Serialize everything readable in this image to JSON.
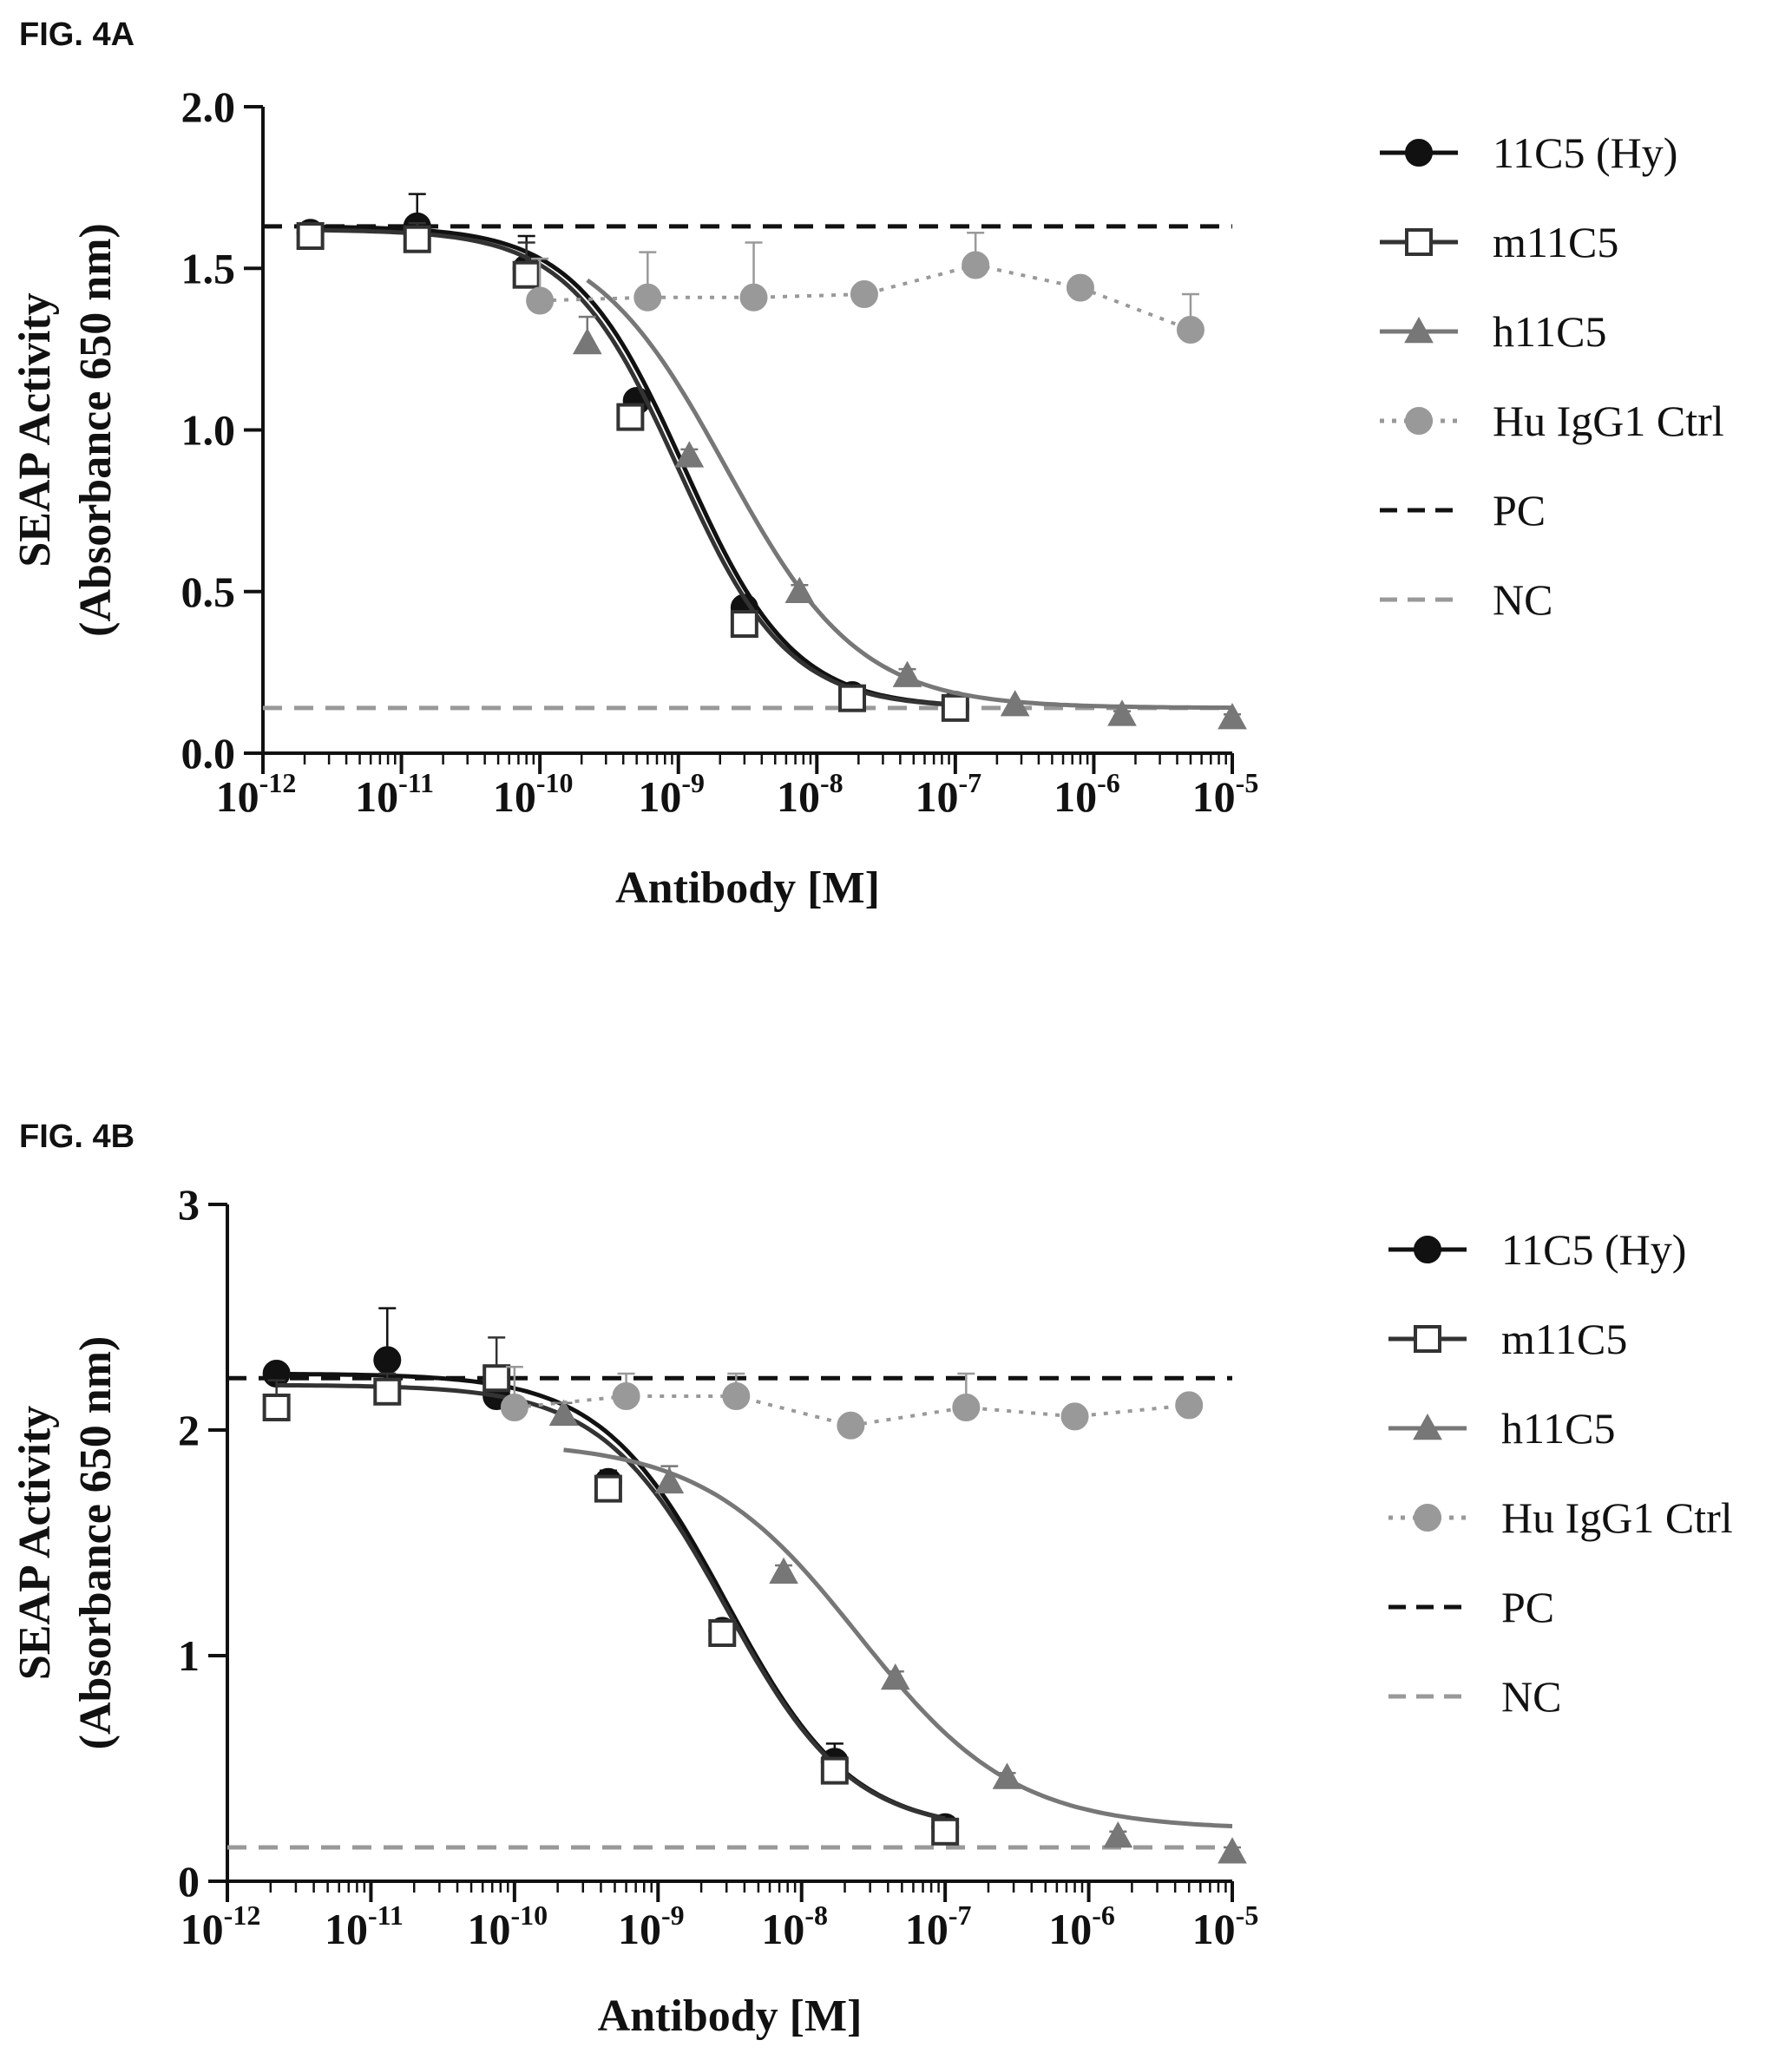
{
  "chart_data": [
    {
      "panel_label": "FIG. 4A",
      "type": "scatter",
      "x_scale": "log",
      "xlabel": "Antibody [M]",
      "ylabel_lines": [
        "SEAP Activity",
        "(Absorbance 650 nm)"
      ],
      "xlim": [
        1e-12,
        1e-05
      ],
      "ylim": [
        0,
        2.0
      ],
      "yticks": [
        0.0,
        0.5,
        1.0,
        1.5,
        2.0
      ],
      "ytick_labels": [
        "0.0",
        "0.5",
        "1.0",
        "1.5",
        "2.0"
      ],
      "xtick_labels": [
        {
          "base": "10",
          "exp": "-12"
        },
        {
          "base": "10",
          "exp": "-11"
        },
        {
          "base": "10",
          "exp": "-10"
        },
        {
          "base": "10",
          "exp": "-9"
        },
        {
          "base": "10",
          "exp": "-8"
        },
        {
          "base": "10",
          "exp": "-7"
        },
        {
          "base": "10",
          "exp": "-6"
        },
        {
          "base": "10",
          "exp": "-5"
        }
      ],
      "legend_position": "right",
      "series": [
        {
          "name": "11C5 (Hy)",
          "marker": "filled-circle",
          "color": "#111111",
          "line": "solid",
          "x": [
            2.2e-12,
            1.3e-11,
            8e-11,
            5e-10,
            3e-09,
            1.8e-08,
            1e-07
          ],
          "y": [
            1.61,
            1.63,
            1.5,
            1.09,
            0.45,
            0.18,
            0.15
          ],
          "err": [
            0.02,
            0.1,
            0.1,
            0.03,
            0.02,
            0.01,
            0.01
          ],
          "fit": {
            "top": 1.63,
            "bottom": 0.14,
            "ec50": 1.1e-09,
            "hill": 1.1
          }
        },
        {
          "name": "m11C5",
          "marker": "open-square",
          "color": "#333333",
          "line": "solid",
          "x": [
            2.2e-12,
            1.3e-11,
            8e-11,
            4.5e-10,
            3e-09,
            1.8e-08,
            1e-07
          ],
          "y": [
            1.6,
            1.59,
            1.48,
            1.04,
            0.4,
            0.17,
            0.14
          ],
          "err": [
            0.02,
            0.05,
            0.1,
            0.03,
            0.02,
            0.01,
            0.01
          ],
          "fit": {
            "top": 1.62,
            "bottom": 0.14,
            "ec50": 1e-09,
            "hill": 1.1
          }
        },
        {
          "name": "h11C5",
          "marker": "filled-triangle",
          "color": "#777777",
          "line": "solid",
          "x": [
            2.2e-10,
            1.2e-09,
            7.5e-09,
            4.5e-08,
            2.7e-07,
            1.6e-06,
            1e-05
          ],
          "y": [
            1.27,
            0.92,
            0.5,
            0.24,
            0.15,
            0.12,
            0.11
          ],
          "err": [
            0.08,
            0.02,
            0.02,
            0.02,
            0.01,
            0.01,
            0.01
          ],
          "fit": {
            "top": 1.63,
            "bottom": 0.14,
            "ec50": 2.2e-09,
            "hill": 0.9
          }
        },
        {
          "name": "Hu IgG1 Ctrl",
          "marker": "filled-circle",
          "color": "#999999",
          "line": "dotted",
          "x": [
            1e-10,
            6e-10,
            3.5e-09,
            2.2e-08,
            1.4e-07,
            8e-07,
            5e-06
          ],
          "y": [
            1.4,
            1.41,
            1.41,
            1.42,
            1.51,
            1.44,
            1.31
          ],
          "err": [
            0.13,
            0.14,
            0.17,
            0.02,
            0.1,
            0.02,
            0.11
          ]
        }
      ],
      "reference_lines": [
        {
          "name": "PC",
          "y": 1.63,
          "color": "#111111",
          "dash": "dashed"
        },
        {
          "name": "NC",
          "y": 0.14,
          "color": "#999999",
          "dash": "dashed"
        }
      ]
    },
    {
      "panel_label": "FIG. 4B",
      "type": "scatter",
      "x_scale": "log",
      "xlabel": "Antibody [M]",
      "ylabel_lines": [
        "SEAP Activity",
        "(Absorbance 650 nm)"
      ],
      "xlim": [
        1e-12,
        1e-05
      ],
      "ylim": [
        0,
        3
      ],
      "yticks": [
        0,
        1,
        2,
        3
      ],
      "ytick_labels": [
        "0",
        "1",
        "2",
        "3"
      ],
      "xtick_labels": [
        {
          "base": "10",
          "exp": "-12"
        },
        {
          "base": "10",
          "exp": "-11"
        },
        {
          "base": "10",
          "exp": "-10"
        },
        {
          "base": "10",
          "exp": "-9"
        },
        {
          "base": "10",
          "exp": "-8"
        },
        {
          "base": "10",
          "exp": "-7"
        },
        {
          "base": "10",
          "exp": "-6"
        },
        {
          "base": "10",
          "exp": "-5"
        }
      ],
      "legend_position": "right",
      "series": [
        {
          "name": "11C5 (Hy)",
          "marker": "filled-circle",
          "color": "#111111",
          "line": "solid",
          "x": [
            2.2e-12,
            1.3e-11,
            7.5e-11,
            4.5e-10,
            2.8e-09,
            1.7e-08,
            1e-07
          ],
          "y": [
            2.25,
            2.31,
            2.15,
            1.77,
            1.11,
            0.53,
            0.24
          ],
          "err": [
            0.03,
            0.23,
            0.1,
            0.05,
            0.03,
            0.08,
            0.02
          ],
          "fit": {
            "top": 2.25,
            "bottom": 0.22,
            "ec50": 3e-09,
            "hill": 1.0
          }
        },
        {
          "name": "m11C5",
          "marker": "open-square",
          "color": "#333333",
          "line": "solid",
          "x": [
            2.2e-12,
            1.3e-11,
            7.5e-11,
            4.5e-10,
            2.8e-09,
            1.7e-08,
            1e-07
          ],
          "y": [
            2.1,
            2.17,
            2.23,
            1.74,
            1.1,
            0.49,
            0.22
          ],
          "err": [
            0.12,
            0.08,
            0.18,
            0.04,
            0.03,
            0.05,
            0.02
          ],
          "fit": {
            "top": 2.2,
            "bottom": 0.22,
            "ec50": 3e-09,
            "hill": 1.0
          }
        },
        {
          "name": "h11C5",
          "marker": "filled-triangle",
          "color": "#777777",
          "line": "solid",
          "x": [
            2.2e-10,
            1.2e-09,
            7.5e-09,
            4.5e-08,
            2.7e-07,
            1.6e-06,
            1e-05
          ],
          "y": [
            2.07,
            1.77,
            1.37,
            0.9,
            0.46,
            0.2,
            0.13
          ],
          "err": [
            0.05,
            0.07,
            0.03,
            0.03,
            0.02,
            0.02,
            0.02
          ],
          "fit": {
            "top": 1.95,
            "bottom": 0.23,
            "ec50": 2.5e-08,
            "hill": 0.8
          }
        },
        {
          "name": "Hu IgG1 Ctrl",
          "marker": "filled-circle",
          "color": "#999999",
          "line": "dotted",
          "x": [
            1e-10,
            6e-10,
            3.5e-09,
            2.2e-08,
            1.4e-07,
            8e-07,
            5e-06
          ],
          "y": [
            2.1,
            2.15,
            2.15,
            2.02,
            2.1,
            2.06,
            2.11
          ],
          "err": [
            0.18,
            0.1,
            0.1,
            0.03,
            0.15,
            0.03,
            0.03
          ]
        }
      ],
      "reference_lines": [
        {
          "name": "PC",
          "y": 2.23,
          "color": "#111111",
          "dash": "dashed"
        },
        {
          "name": "NC",
          "y": 0.15,
          "color": "#999999",
          "dash": "dashed"
        }
      ]
    }
  ]
}
